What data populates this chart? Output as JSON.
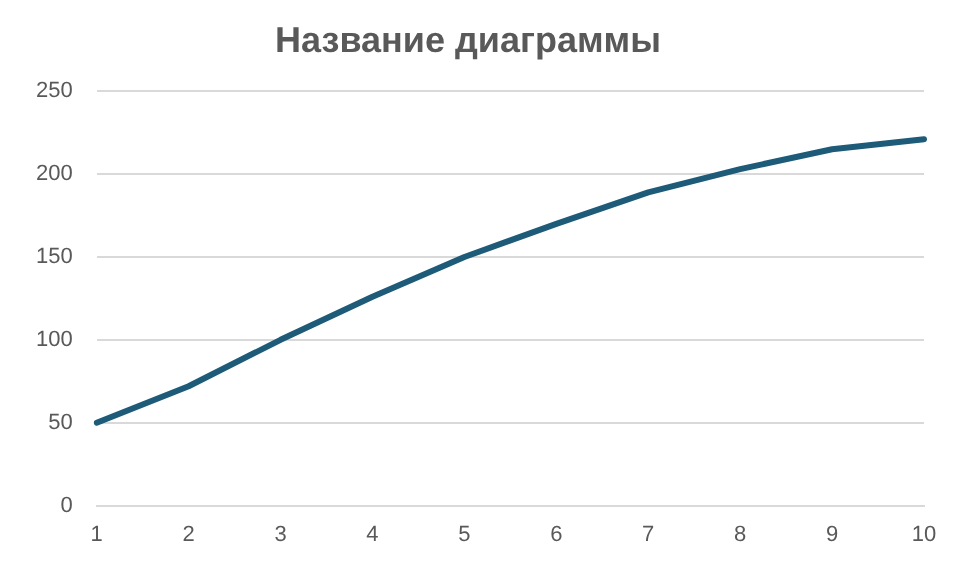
{
  "chart_data": {
    "type": "line",
    "title": "Название диаграммы",
    "categories": [
      "1",
      "2",
      "3",
      "4",
      "5",
      "6",
      "7",
      "8",
      "9",
      "10"
    ],
    "series": [
      {
        "color": "#1d5b79",
        "values": [
          50,
          72,
          100,
          126,
          150,
          170,
          189,
          203,
          215,
          221
        ]
      }
    ],
    "ylim": [
      0,
      250
    ],
    "yticks": [
      0,
      50,
      100,
      150,
      200,
      250
    ],
    "grid": "y",
    "legend": false,
    "marker": "none",
    "line_style": "solid"
  }
}
